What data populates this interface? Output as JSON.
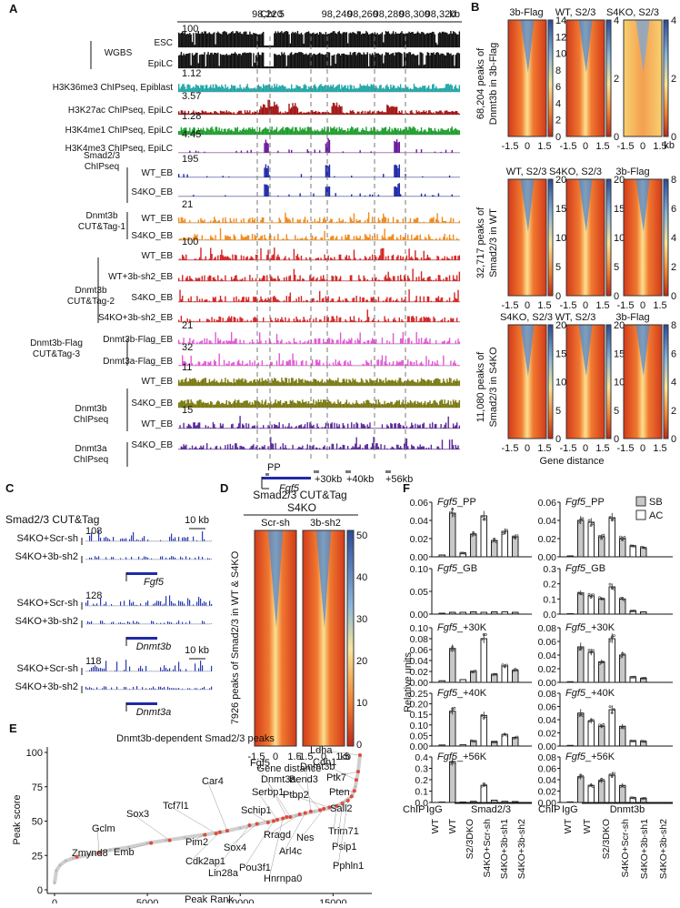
{
  "panels": {
    "A": {
      "letter": "A",
      "coord_chrom": "Chr 5",
      "coord_ticks": [
        "98,220",
        "98,240",
        "98,260",
        "98,280",
        "98,300",
        "98,320"
      ],
      "coord_unit": "kb",
      "group_labels": [
        {
          "text": "WGBS"
        },
        {
          "text": "Smad2/3"
        },
        {
          "text": "ChIPseq"
        },
        {
          "text": "Dnmt3b"
        },
        {
          "text": "CUT&Tag-1"
        },
        {
          "text": "Dnmt3b"
        },
        {
          "text": "CUT&Tag-2"
        },
        {
          "text": "Dnmt3b-Flag"
        },
        {
          "text": "CUT&Tag-3"
        },
        {
          "text": "Dnmt3b"
        },
        {
          "text": "ChIPseq"
        },
        {
          "text": "Dnmt3a"
        },
        {
          "text": "ChIPseq"
        }
      ],
      "tracks": [
        {
          "label": "ESC",
          "scale": "100",
          "color": "#111111",
          "style": "dense"
        },
        {
          "label": "EpiLC",
          "scale": "",
          "color": "#111111",
          "style": "dense"
        },
        {
          "label": "H3K36me3 ChIPseq, Epiblast",
          "scale": "1.12",
          "color": "#22a6a6",
          "style": "fill"
        },
        {
          "label": "H3K27ac ChIPseq, EpiLC",
          "scale": "3.57",
          "color": "#a31515",
          "style": "peaks"
        },
        {
          "label": "H3K4me1 ChIPseq, EpiLC",
          "scale": "1.28",
          "color": "#1f9e2e",
          "style": "fill"
        },
        {
          "label": "H3K4me3 ChIPseq, EpiLC",
          "scale": "4.45",
          "color": "#6a1a9a",
          "style": "sparse"
        },
        {
          "label": "WT_EB",
          "scale": "195",
          "color": "#1f2aa8",
          "style": "sparse"
        },
        {
          "label": "S4KO_EB",
          "scale": "",
          "color": "#1f2aa8",
          "style": "sparse"
        },
        {
          "label": "WT_EB",
          "scale": "21",
          "color": "#f08a1c",
          "style": "noisy"
        },
        {
          "label": "S4KO_EB",
          "scale": "",
          "color": "#f08a1c",
          "style": "noisy"
        },
        {
          "label": "WT_EB",
          "scale": "100",
          "color": "#d42424",
          "style": "noisy"
        },
        {
          "label": "WT+3b-sh2_EB",
          "scale": "",
          "color": "#d42424",
          "style": "noisy"
        },
        {
          "label": "S4KO_EB",
          "scale": "",
          "color": "#d42424",
          "style": "noisy"
        },
        {
          "label": "S4KO+3b-sh2_EB",
          "scale": "",
          "color": "#d42424",
          "style": "noisy"
        },
        {
          "label": "Dnmt3b-Flag_EB",
          "scale": "21",
          "color": "#e05ad2",
          "style": "noisy"
        },
        {
          "label": "Dnmt3a-Flag_EB",
          "scale": "32",
          "color": "#e05ad2",
          "style": "noisy"
        },
        {
          "label": "WT_EB",
          "scale": "11",
          "color": "#7a7a12",
          "style": "fill"
        },
        {
          "label": "S4KO_EB",
          "scale": "",
          "color": "#7a7a12",
          "style": "fill"
        },
        {
          "label": "WT_EB",
          "scale": "15",
          "color": "#5b2a99",
          "style": "noisy"
        },
        {
          "label": "S4KO_EB",
          "scale": "",
          "color": "#5b2a99",
          "style": "noisy"
        }
      ],
      "region_labels": [
        "PP",
        "+30kb",
        "+40kb",
        "+56kb"
      ],
      "gene": "Fgf5"
    },
    "B": {
      "letter": "B",
      "rows": [
        {
          "row_label": [
            "68,204 peaks of",
            "Dnmt3b in 3b-Flag"
          ],
          "titles": [
            "3b-Flag",
            "WT, S2/3",
            "S4KO, S2/3"
          ],
          "scale_maxes": [
            14,
            4,
            4
          ]
        },
        {
          "row_label": [
            "32,717 peaks of",
            "Smad2/3 in WT"
          ],
          "titles": [
            "WT, S2/3",
            "S4KO, S2/3",
            "3b-Flag"
          ],
          "scale_maxes": [
            20,
            20,
            8
          ]
        },
        {
          "row_label": [
            "11,080 peaks of",
            "Smad2/3 in S4KO"
          ],
          "titles": [
            "S4KO, S2/3",
            "WT, S2/3",
            "3b-Flag"
          ],
          "scale_maxes": [
            20,
            20,
            8
          ]
        }
      ],
      "axis_ticks": [
        "-1.5",
        "0",
        "1.5"
      ],
      "axis_unit": "kb",
      "axis_label": "Gene distance"
    },
    "C": {
      "letter": "C",
      "title": "Smad2/3 CUT&Tag",
      "scale_bar": "10 kb",
      "loci": [
        {
          "scale": "108",
          "tracks": [
            "S4KO+Scr-sh",
            "S4KO+3b-sh2"
          ],
          "gene": "Fgf5"
        },
        {
          "scale": "128",
          "tracks": [
            "S4KO+Scr-sh",
            "S4KO+3b-sh2"
          ],
          "gene": "Dnmt3b"
        },
        {
          "scale": "118",
          "tracks": [
            "S4KO+Scr-sh",
            "S4KO+3b-sh2"
          ],
          "gene": "Dnmt3a"
        }
      ]
    },
    "D": {
      "letter": "D",
      "title": [
        "Smad2/3 CUT&Tag",
        "S4KO"
      ],
      "columns": [
        "Scr-sh",
        "3b-sh2"
      ],
      "row_label": [
        "7926 peaks of Smad2/3 in WT & S4KO"
      ],
      "colorbar_ticks": [
        "50",
        "40",
        "30",
        "20",
        "10",
        "0"
      ],
      "axis_ticks": [
        "-1.5",
        "0",
        "1.5"
      ],
      "axis_unit": "kb",
      "axis_label": "Gene distance"
    },
    "F": {
      "letter": "F",
      "legend": [
        "SB",
        "AC"
      ],
      "ylabel": "Relative units",
      "left_title_suffixes": [
        "_PP",
        "_GB",
        "_+30K",
        "_+40K",
        "_+56K"
      ],
      "gene_italic": "Fgf5",
      "left_yticks": [
        [
          "0.06",
          "0.04",
          "0.02",
          "0.00"
        ],
        [
          "0.10",
          "0.05",
          "0.00"
        ],
        [
          "0.10",
          "0.08",
          "0.06",
          "0.04",
          "0.02",
          "0.00"
        ],
        [
          "0.25",
          "0.20",
          "0.15",
          "0.10",
          "0.05",
          "0.00"
        ],
        [
          "0.4",
          "0.3",
          "0.2",
          "0.1",
          "0.0"
        ]
      ],
      "right_yticks": [
        [
          "0.06",
          "0.04",
          "0.02",
          "0.00"
        ],
        [
          "0.3",
          "0.2",
          "0.1",
          "0.0"
        ],
        [
          "0.08",
          "0.06",
          "0.04",
          "0.02",
          "0.00"
        ],
        [
          "0.08",
          "0.06",
          "0.04",
          "0.02",
          "0.00"
        ],
        [
          "0.08",
          "0.06",
          "0.04",
          "0.02",
          "0.00"
        ]
      ],
      "x_prefix": "ChIP",
      "x_igg": "IgG",
      "x_groups": [
        "Smad2/3",
        "Dnmt3b"
      ],
      "x_conditions": [
        "WT",
        "WT",
        "S2/3DKO",
        "S4KO+Scr-sh",
        "S4KO+3b-sh1",
        "S4KO+3b-sh2"
      ],
      "bars_left": [
        [
          0.002,
          0.048,
          0.004,
          0.025,
          0.045,
          0.018,
          0.028,
          0.022
        ],
        [
          0.002,
          0.004,
          0.004,
          0.005,
          0.004,
          0.005,
          0.005,
          0.004
        ],
        [
          0.003,
          0.062,
          0.005,
          0.02,
          0.08,
          0.015,
          0.03,
          0.022
        ],
        [
          0.005,
          0.165,
          0.006,
          0.025,
          0.145,
          0.02,
          0.055,
          0.04
        ],
        [
          0.004,
          0.36,
          0.004,
          0.01,
          0.15,
          0.02,
          0.01,
          0.008
        ]
      ],
      "bars_right": [
        [
          0.001,
          0.04,
          0.038,
          0.022,
          0.043,
          0.02,
          0.012,
          0.01
        ],
        [
          0.002,
          0.14,
          0.12,
          0.1,
          0.18,
          0.1,
          0.02,
          0.015
        ],
        [
          0.001,
          0.052,
          0.044,
          0.03,
          0.064,
          0.04,
          0.008,
          0.006
        ],
        [
          0.001,
          0.05,
          0.038,
          0.03,
          0.055,
          0.03,
          0.008,
          0.007
        ],
        [
          0.001,
          0.045,
          0.03,
          0.038,
          0.048,
          0.03,
          0.008,
          0.007
        ]
      ],
      "right_max": [
        0.06,
        0.3,
        0.08,
        0.08,
        0.08
      ]
    },
    "E": {
      "letter": "E",
      "title": "Dnmt3b-dependent Smad2/3 peaks",
      "xlabel": "Peak Rank",
      "ylabel": "Peak score",
      "xticks": [
        "0",
        "5000",
        "10000",
        "15000"
      ],
      "yticks": [
        "0",
        "25",
        "50",
        "75",
        "100"
      ],
      "highlighted_genes": [
        "Ldha",
        "Cdh1",
        "Ptk7",
        "Dnmt3b",
        "Bend3",
        "Fgf5",
        "Pten",
        "Car4",
        "Dnmt3a",
        "Serbp1",
        "Ptbp2",
        "Sall2",
        "Tcf7l1",
        "Sox3",
        "Schip1",
        "Trim71",
        "Gclm",
        "Rragd",
        "Nes",
        "Psip1",
        "Pim2",
        "Sox4",
        "Arl4c",
        "Emb",
        "Cdk2ap1",
        "Pou3f1",
        "Pphln1",
        "Zmynd8",
        "Lin28a",
        "Hnrnpa0"
      ]
    }
  },
  "chart_data": {
    "type": "scatter",
    "title": "Dnmt3b-dependent Smad2/3 peaks",
    "xlabel": "Peak Rank",
    "ylabel": "Peak score",
    "xlim": [
      0,
      16500
    ],
    "ylim": [
      0,
      100
    ],
    "x": [
      0,
      100,
      300,
      600,
      1000,
      2000,
      3000,
      4000,
      5000,
      6000,
      7000,
      8000,
      9000,
      10000,
      11000,
      12000,
      13000,
      14000,
      15000,
      15500,
      16000,
      16200,
      16350,
      16450
    ],
    "values": [
      5,
      14,
      18,
      21,
      23,
      26,
      29,
      31,
      34,
      36,
      38,
      40,
      42,
      45,
      48,
      51,
      54,
      57,
      60,
      63,
      68,
      75,
      86,
      98
    ],
    "highlighted_points": [
      {
        "gene": "Gclm",
        "x": 2400,
        "y": 27
      },
      {
        "gene": "Zmynd8",
        "x": 1200,
        "y": 24
      },
      {
        "gene": "Emb",
        "x": 5200,
        "y": 34
      },
      {
        "gene": "Sox3",
        "x": 6200,
        "y": 36
      },
      {
        "gene": "Pim2",
        "x": 8100,
        "y": 40
      },
      {
        "gene": "Tcf7l1",
        "x": 8700,
        "y": 41
      },
      {
        "gene": "Car4",
        "x": 9300,
        "y": 43
      },
      {
        "gene": "Cdk2ap1",
        "x": 8900,
        "y": 42
      },
      {
        "gene": "Lin28a",
        "x": 10500,
        "y": 47
      },
      {
        "gene": "Sox4",
        "x": 10900,
        "y": 48
      },
      {
        "gene": "Schip1",
        "x": 11500,
        "y": 49
      },
      {
        "gene": "Pou3f1",
        "x": 11800,
        "y": 50
      },
      {
        "gene": "Serbp1",
        "x": 12000,
        "y": 51
      },
      {
        "gene": "Hnrnpa0",
        "x": 12300,
        "y": 52
      },
      {
        "gene": "Dnmt3a",
        "x": 12500,
        "y": 53
      },
      {
        "gene": "Fgf5",
        "x": 12700,
        "y": 53
      },
      {
        "gene": "Rragd",
        "x": 13200,
        "y": 55
      },
      {
        "gene": "Arl4c",
        "x": 13500,
        "y": 56
      },
      {
        "gene": "Dnmt3b",
        "x": 13800,
        "y": 57
      },
      {
        "gene": "Bend3",
        "x": 14300,
        "y": 58
      },
      {
        "gene": "Nes",
        "x": 14500,
        "y": 59
      },
      {
        "gene": "Ptbp2",
        "x": 14800,
        "y": 60
      },
      {
        "gene": "Trim71",
        "x": 15200,
        "y": 61
      },
      {
        "gene": "Psip1",
        "x": 15500,
        "y": 63
      },
      {
        "gene": "Pphln1",
        "x": 15800,
        "y": 65
      },
      {
        "gene": "Sall2",
        "x": 16000,
        "y": 68
      },
      {
        "gene": "Pten",
        "x": 16150,
        "y": 72
      },
      {
        "gene": "Cdh1",
        "x": 16250,
        "y": 80
      },
      {
        "gene": "Ptk7",
        "x": 16350,
        "y": 86
      },
      {
        "gene": "Ldha",
        "x": 16450,
        "y": 98
      }
    ]
  }
}
